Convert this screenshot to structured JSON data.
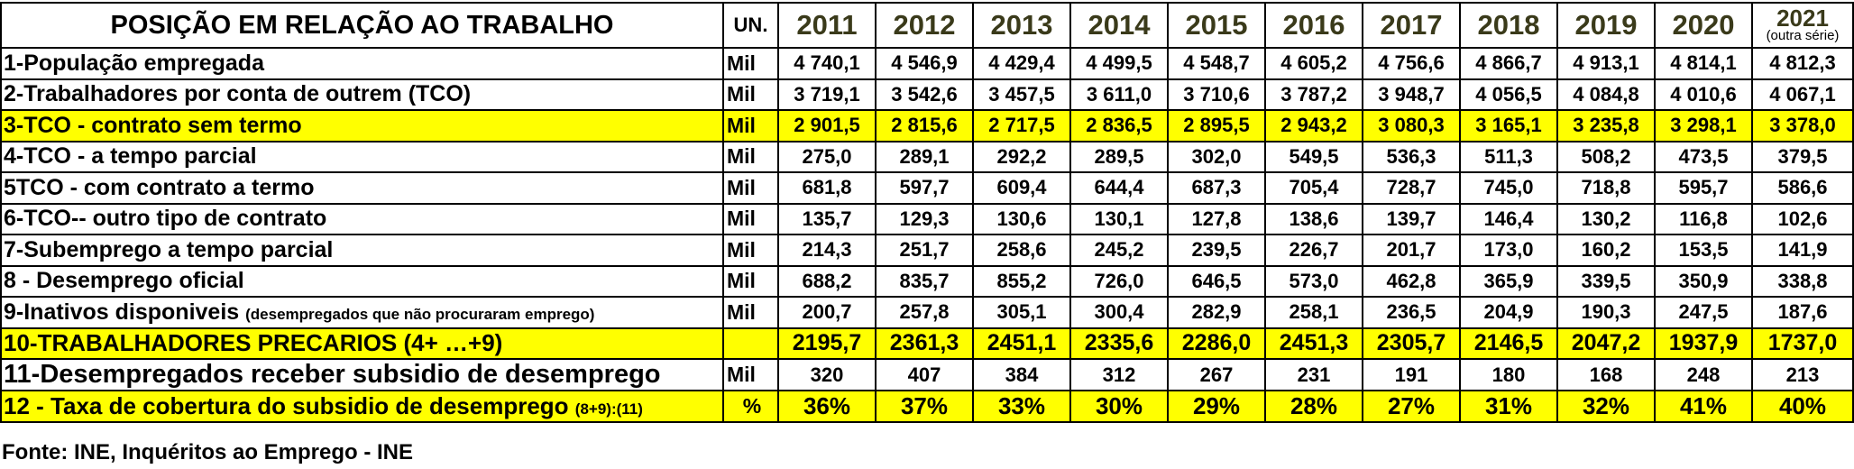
{
  "header": {
    "title": "POSIÇÃO EM RELAÇÃO AO TRABALHO",
    "unit": "UN.",
    "years": [
      "2011",
      "2012",
      "2013",
      "2014",
      "2015",
      "2016",
      "2017",
      "2018",
      "2019",
      "2020"
    ],
    "last_year": "2021",
    "last_year_note": "(outra série)"
  },
  "rows": [
    {
      "label": "1-População empregada",
      "label_small": "",
      "unit": "Mil",
      "values": [
        "4 740,1",
        "4 546,9",
        "4 429,4",
        "4 499,5",
        "4 548,7",
        "4 605,2",
        "4 756,6",
        "4 866,7",
        "4 913,1",
        "4 814,1",
        "4 812,3"
      ]
    },
    {
      "label": "2-Trabalhadores por conta de outrem (TCO)",
      "label_small": "",
      "unit": "Mil",
      "values": [
        "3 719,1",
        "3 542,6",
        "3 457,5",
        "3 611,0",
        "3 710,6",
        "3 787,2",
        "3 948,7",
        "4 056,5",
        "4 084,8",
        "4 010,6",
        "4 067,1"
      ]
    },
    {
      "label": "3-TCO - contrato sem termo",
      "label_small": "",
      "unit": "Mil",
      "values": [
        "2 901,5",
        "2 815,6",
        "2 717,5",
        "2 836,5",
        "2 895,5",
        "2 943,2",
        "3 080,3",
        "3 165,1",
        "3 235,8",
        "3 298,1",
        "3 378,0"
      ]
    },
    {
      "label": "4-TCO - a tempo parcial",
      "label_small": "",
      "unit": "Mil",
      "values": [
        "275,0",
        "289,1",
        "292,2",
        "289,5",
        "302,0",
        "549,5",
        "536,3",
        "511,3",
        "508,2",
        "473,5",
        "379,5"
      ]
    },
    {
      "label": "5TCO - com contrato a termo",
      "label_small": "",
      "unit": "Mil",
      "values": [
        "681,8",
        "597,7",
        "609,4",
        "644,4",
        "687,3",
        "705,4",
        "728,7",
        "745,0",
        "718,8",
        "595,7",
        "586,6"
      ]
    },
    {
      "label": "6-TCO-- outro tipo de contrato",
      "label_small": "",
      "unit": "Mil",
      "values": [
        "135,7",
        "129,3",
        "130,6",
        "130,1",
        "127,8",
        "138,6",
        "139,7",
        "146,4",
        "130,2",
        "116,8",
        "102,6"
      ]
    },
    {
      "label": "7-Subemprego a tempo  parcial",
      "label_small": "",
      "unit": "Mil",
      "values": [
        "214,3",
        "251,7",
        "258,6",
        "245,2",
        "239,5",
        "226,7",
        "201,7",
        "173,0",
        "160,2",
        "153,5",
        "141,9"
      ]
    },
    {
      "label": "8 - Desemprego oficial",
      "label_small": "",
      "unit": "Mil",
      "values": [
        "688,2",
        "835,7",
        "855,2",
        "726,0",
        "646,5",
        "573,0",
        "462,8",
        "365,9",
        "339,5",
        "350,9",
        "338,8"
      ]
    },
    {
      "label": "9-Inativos disponiveis ",
      "label_small": "(desempregados que não procuraram emprego)",
      "unit": "Mil",
      "values": [
        "200,7",
        "257,8",
        "305,1",
        "300,4",
        "282,9",
        "258,1",
        "236,5",
        "204,9",
        "190,3",
        "247,5",
        "187,6"
      ]
    },
    {
      "label": "10-TRABALHADORES PRECARIOS  (4+ …+9)",
      "label_small": "",
      "unit": "",
      "values": [
        "2195,7",
        "2361,3",
        "2451,1",
        "2335,6",
        "2286,0",
        "2451,3",
        "2305,7",
        "2146,5",
        "2047,2",
        "1937,9",
        "1737,0"
      ]
    },
    {
      "label": "11-Desempregados receber subsidio de desemprego",
      "label_small": "",
      "unit": "Mil",
      "values": [
        "320",
        "407",
        "384",
        "312",
        "267",
        "231",
        "191",
        "180",
        "168",
        "248",
        "213"
      ]
    },
    {
      "label": "12 - Taxa de cobertura do subsidio de desemprego ",
      "label_small": "(8+9):(11)",
      "unit": "%",
      "values": [
        "36%",
        "37%",
        "33%",
        "30%",
        "29%",
        "28%",
        "27%",
        "31%",
        "32%",
        "41%",
        "40%"
      ]
    }
  ],
  "source": "Fonte: INE, Inquéritos ao Emprego - INE",
  "colors": {
    "highlight": "#ffff00",
    "year_text": "#3a3a1a"
  }
}
